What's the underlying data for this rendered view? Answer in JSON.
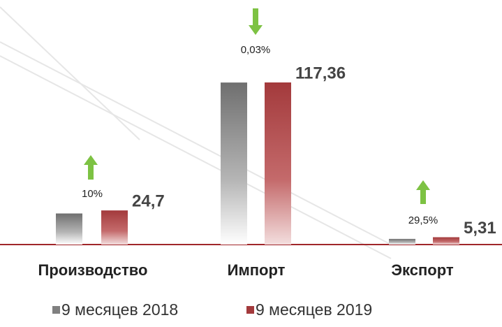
{
  "chart_data": {
    "type": "bar",
    "categories": [
      "Производство",
      "Импорт",
      "Экспорт"
    ],
    "series": [
      {
        "name": "9 месяцев 2018",
        "color": "#808080",
        "values": [
          22.5,
          117.3,
          4.1
        ]
      },
      {
        "name": "9 месяцев 2019",
        "color": "#a33a3c",
        "values": [
          24.7,
          117.36,
          5.31
        ],
        "value_labels": [
          "24,7",
          "117,36",
          "5,31"
        ]
      }
    ],
    "annotations": [
      "10%",
      "0,03%",
      "29,5%"
    ]
  }
}
